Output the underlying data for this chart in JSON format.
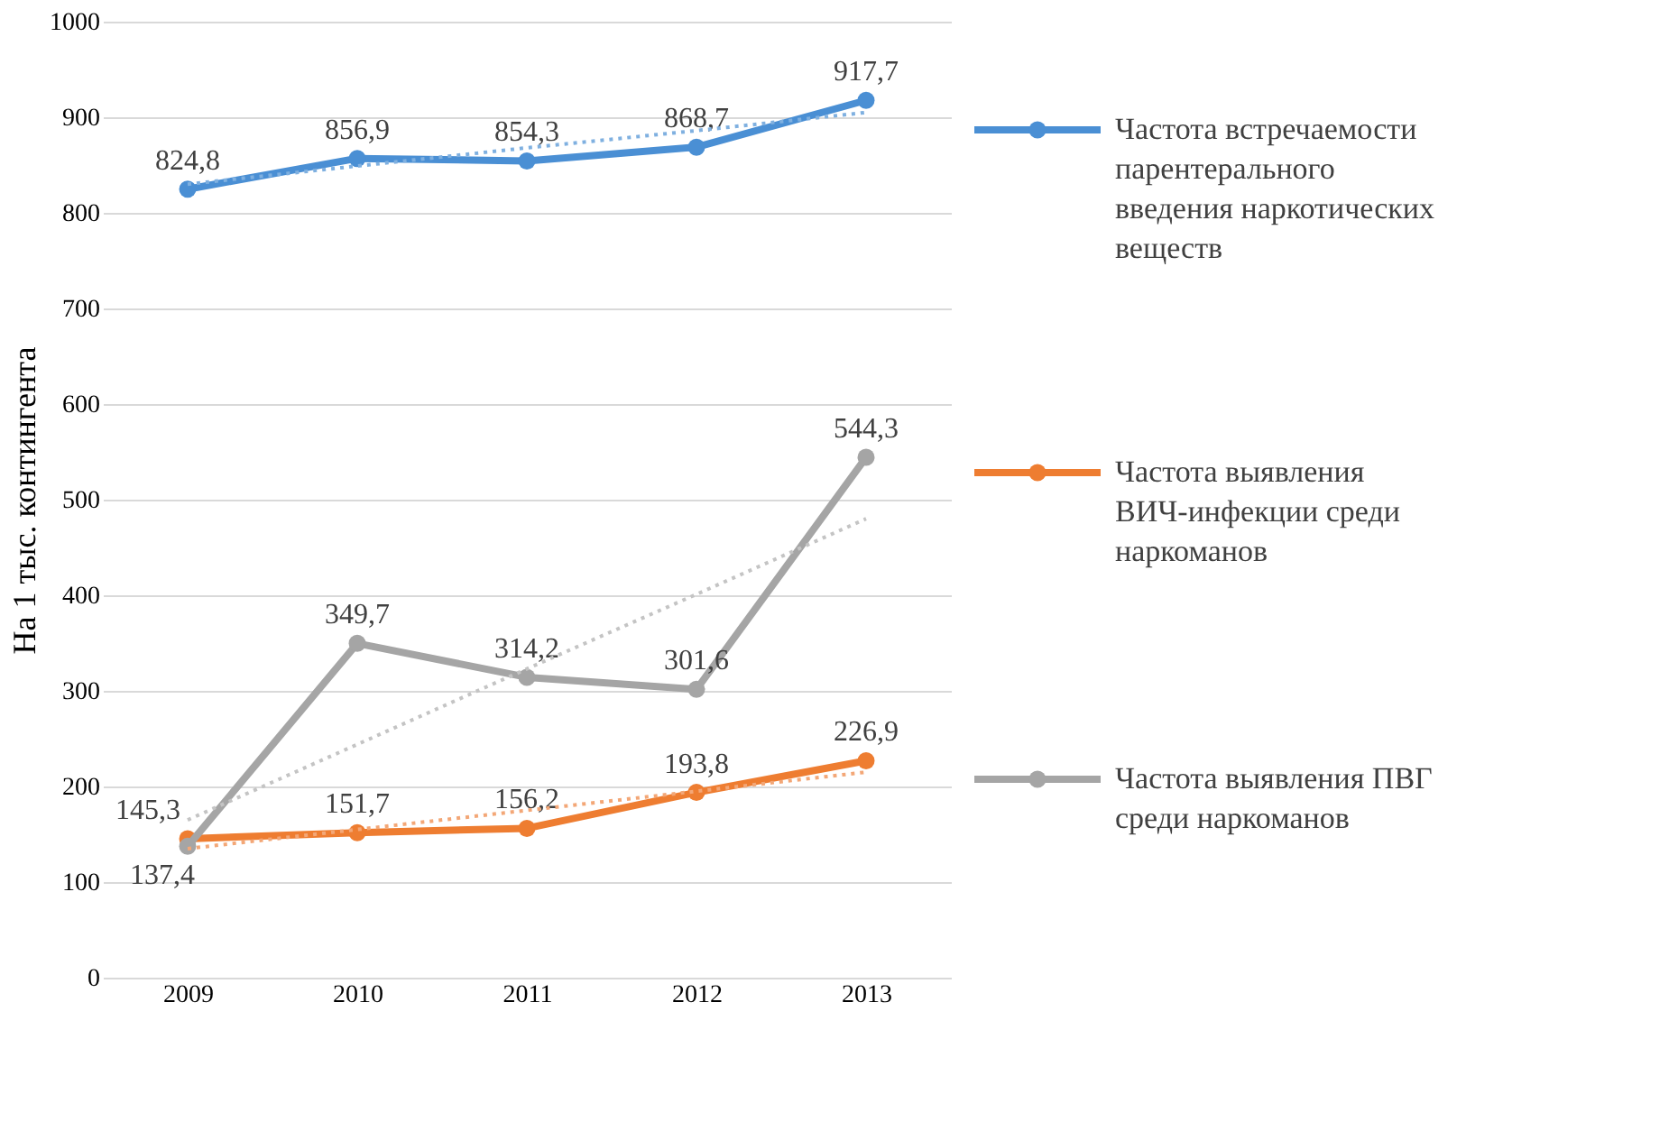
{
  "chart_data": {
    "type": "line",
    "ylabel": "На 1 тыс. контингента",
    "categories": [
      "2009",
      "2010",
      "2011",
      "2012",
      "2013"
    ],
    "ylim": [
      0,
      1000
    ],
    "yticks": [
      0,
      100,
      200,
      300,
      400,
      500,
      600,
      700,
      800,
      900,
      1000
    ],
    "grid": "y",
    "legend": "right",
    "marker": "circle",
    "line_style": "solid",
    "series": [
      {
        "name": "Частота встречаемости парентерального введения наркотических веществ",
        "color": "#4a8fd4",
        "values": [
          824.8,
          856.9,
          854.3,
          868.7,
          917.7
        ],
        "value_labels": [
          "824,8",
          "856,9",
          "854,3",
          "868,7",
          "917,7"
        ]
      },
      {
        "name": "Частота выявления ВИЧ-инфекции среди наркоманов",
        "color": "#ee7d31",
        "values": [
          145.3,
          151.7,
          156.2,
          193.8,
          226.9
        ],
        "value_labels": [
          "145,3",
          "151,7",
          "156,2",
          "193,8",
          "226,9"
        ]
      },
      {
        "name": "Частота выявления ПВГ среди наркоманов",
        "color": "#a5a5a5",
        "values": [
          137.4,
          349.7,
          314.2,
          301.6,
          544.3
        ],
        "value_labels": [
          "137,4",
          "349,7",
          "314,2",
          "301,6",
          "544,3"
        ]
      },
      {
        "type": "line",
        "color": "#7fb0e0",
        "line_style": "dotted",
        "marker": "none",
        "values": [
          830,
          849,
          868,
          886,
          905
        ]
      },
      {
        "type": "line",
        "color": "#f3a777",
        "line_style": "dotted",
        "marker": "none",
        "values": [
          135,
          155,
          175,
          195,
          215
        ]
      },
      {
        "type": "line",
        "color": "#c4c4c4",
        "line_style": "dotted",
        "marker": "none",
        "values": [
          165,
          244,
          323,
          401,
          480
        ]
      }
    ]
  }
}
